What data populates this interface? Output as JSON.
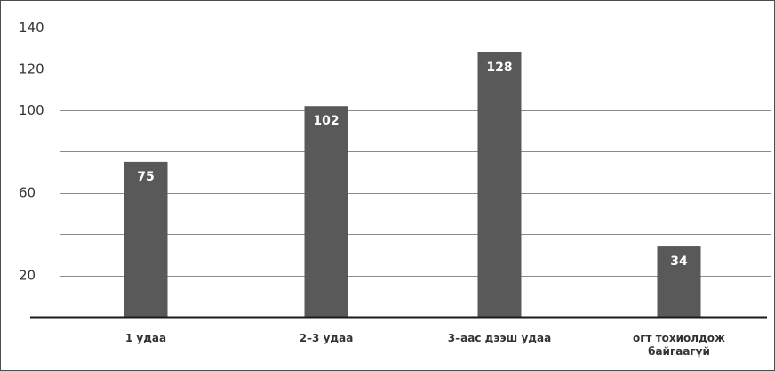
{
  "chart_data": {
    "type": "bar",
    "categories": [
      [
        "1 удаа"
      ],
      [
        "2–3 удаа"
      ],
      [
        "3–аас дээш удаа"
      ],
      [
        "огт тохиолдож",
        "байгаагүй"
      ]
    ],
    "values": [
      75,
      102,
      128,
      34
    ],
    "data_labels": [
      "75",
      "102",
      "128",
      "34"
    ],
    "y_ticks": [
      20,
      60,
      100,
      120,
      140
    ],
    "ylim": [
      0,
      140
    ],
    "bar_color": "#595959",
    "grid": true,
    "grid_color": "#8c8c8c",
    "axis_color": "#1a1a1a",
    "legend": "none"
  }
}
